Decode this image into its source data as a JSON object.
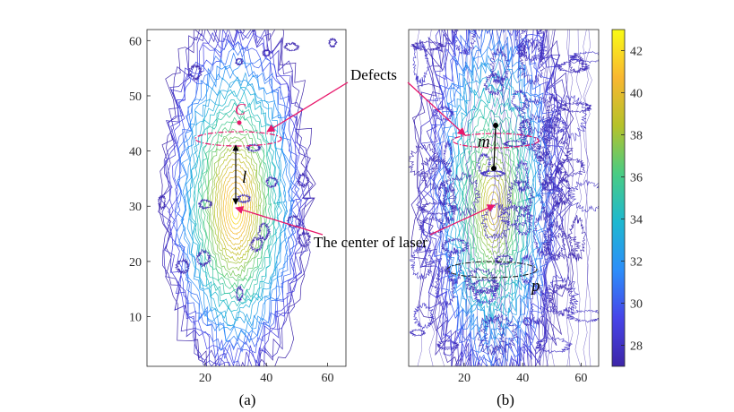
{
  "chart_data": [
    {
      "type": "contour",
      "panel": "a",
      "caption": "(a)",
      "x_ticks": [
        20,
        40,
        60
      ],
      "y_ticks": [
        10,
        20,
        30,
        40,
        50,
        60
      ],
      "xlim": [
        1,
        66
      ],
      "ylim": [
        1,
        62
      ],
      "center": [
        30,
        29.5
      ],
      "point_C": [
        31,
        44.5
      ],
      "annotations": {
        "C": "C",
        "l": "l"
      }
    },
    {
      "type": "contour",
      "panel": "b",
      "caption": "(b)",
      "x_ticks": [
        20,
        40,
        60
      ],
      "xlim": [
        1,
        66
      ],
      "ylim": [
        1,
        62
      ],
      "center": [
        30,
        29.5
      ],
      "annotations": {
        "m": "m",
        "p": "p"
      }
    }
  ],
  "colorbar": {
    "ticks": [
      28,
      30,
      32,
      34,
      36,
      38,
      40,
      42
    ],
    "min": 27,
    "max": 43,
    "colors": [
      "#3e26a8",
      "#4744e8",
      "#2c8efa",
      "#1eb8d0",
      "#49cc84",
      "#b5c22a",
      "#f9b731",
      "#f9fb15"
    ]
  },
  "labels": {
    "defects": "Defects",
    "center_of_laser": "The center of laser"
  }
}
